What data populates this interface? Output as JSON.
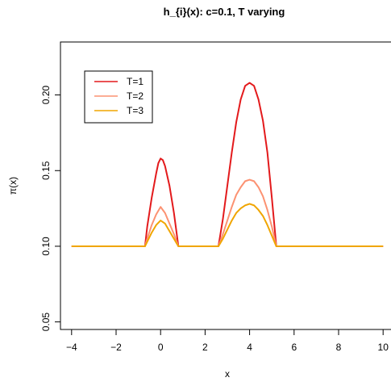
{
  "chart_data": {
    "type": "line",
    "title": "h_{i}(x): c=0.1, T varying",
    "xlabel": "x",
    "ylabel": "π(x)",
    "xlim": [
      -4.5,
      10.5
    ],
    "ylim": [
      0.045,
      0.235
    ],
    "x_ticks": [
      -4,
      -2,
      0,
      2,
      4,
      6,
      8,
      10
    ],
    "x_tick_labels": [
      "−4",
      "−2",
      "0",
      "2",
      "4",
      "6",
      "8",
      "10"
    ],
    "y_ticks": [
      0.05,
      0.1,
      0.15,
      0.2
    ],
    "y_tick_labels": [
      "0.05",
      "0.10",
      "0.15",
      "0.20"
    ],
    "legend_position": "top-left",
    "series": [
      {
        "name": "T=1",
        "color": "#e31a1c",
        "points": [
          [
            -4,
            0.1
          ],
          [
            -0.7,
            0.1
          ],
          [
            -0.6,
            0.113
          ],
          [
            -0.4,
            0.132
          ],
          [
            -0.2,
            0.148
          ],
          [
            -0.1,
            0.155
          ],
          [
            0,
            0.158
          ],
          [
            0.1,
            0.157
          ],
          [
            0.2,
            0.153
          ],
          [
            0.4,
            0.14
          ],
          [
            0.6,
            0.122
          ],
          [
            0.8,
            0.1
          ],
          [
            2.6,
            0.1
          ],
          [
            2.8,
            0.118
          ],
          [
            3.0,
            0.14
          ],
          [
            3.2,
            0.162
          ],
          [
            3.4,
            0.182
          ],
          [
            3.6,
            0.197
          ],
          [
            3.8,
            0.206
          ],
          [
            4.0,
            0.208
          ],
          [
            4.2,
            0.206
          ],
          [
            4.4,
            0.197
          ],
          [
            4.6,
            0.183
          ],
          [
            4.8,
            0.162
          ],
          [
            5.0,
            0.132
          ],
          [
            5.2,
            0.1
          ],
          [
            10,
            0.1
          ]
        ]
      },
      {
        "name": "T=2",
        "color": "#fc9272",
        "points": [
          [
            -4,
            0.1
          ],
          [
            -0.7,
            0.1
          ],
          [
            -0.6,
            0.105
          ],
          [
            -0.4,
            0.114
          ],
          [
            -0.2,
            0.121
          ],
          [
            0,
            0.126
          ],
          [
            0.2,
            0.122
          ],
          [
            0.4,
            0.115
          ],
          [
            0.6,
            0.108
          ],
          [
            0.8,
            0.1
          ],
          [
            2.6,
            0.1
          ],
          [
            2.8,
            0.108
          ],
          [
            3.0,
            0.117
          ],
          [
            3.2,
            0.126
          ],
          [
            3.4,
            0.134
          ],
          [
            3.6,
            0.139
          ],
          [
            3.8,
            0.143
          ],
          [
            4.0,
            0.144
          ],
          [
            4.2,
            0.143
          ],
          [
            4.4,
            0.139
          ],
          [
            4.6,
            0.133
          ],
          [
            4.8,
            0.124
          ],
          [
            5.0,
            0.113
          ],
          [
            5.2,
            0.1
          ],
          [
            10,
            0.1
          ]
        ]
      },
      {
        "name": "T=3",
        "color": "#f0a500",
        "points": [
          [
            -4,
            0.1
          ],
          [
            -0.7,
            0.1
          ],
          [
            -0.6,
            0.103
          ],
          [
            -0.4,
            0.109
          ],
          [
            -0.2,
            0.114
          ],
          [
            0,
            0.117
          ],
          [
            0.2,
            0.115
          ],
          [
            0.4,
            0.11
          ],
          [
            0.6,
            0.105
          ],
          [
            0.8,
            0.1
          ],
          [
            2.6,
            0.1
          ],
          [
            2.8,
            0.105
          ],
          [
            3.0,
            0.111
          ],
          [
            3.2,
            0.117
          ],
          [
            3.4,
            0.122
          ],
          [
            3.6,
            0.125
          ],
          [
            3.8,
            0.127
          ],
          [
            4.0,
            0.128
          ],
          [
            4.2,
            0.127
          ],
          [
            4.4,
            0.124
          ],
          [
            4.6,
            0.12
          ],
          [
            4.8,
            0.114
          ],
          [
            5.0,
            0.107
          ],
          [
            5.2,
            0.1
          ],
          [
            10,
            0.1
          ]
        ]
      }
    ]
  }
}
